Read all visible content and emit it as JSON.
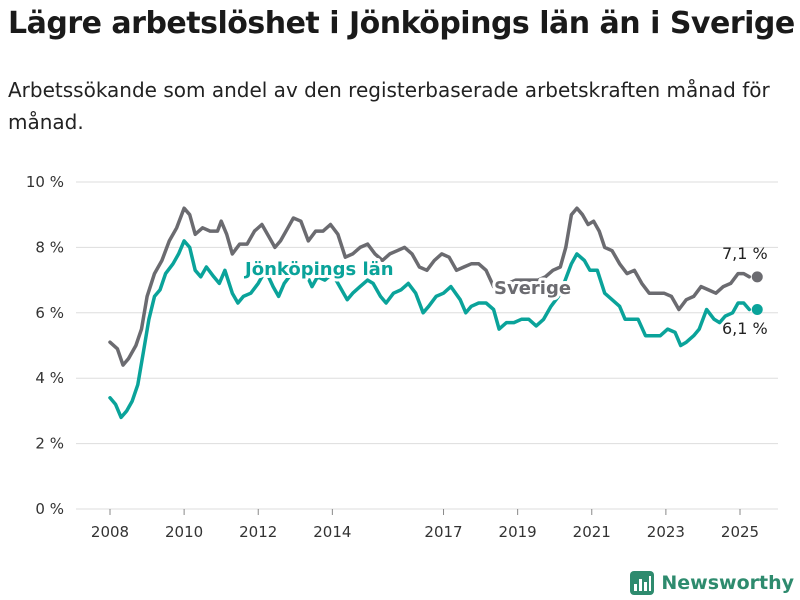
{
  "title": "Lägre arbetslöshet i Jönköpings län än i Sverige",
  "subtitle": "Arbetssökande som andel av den registerbaserade arbetskraften månad för månad.",
  "brand": "Newsworthy",
  "colors": {
    "sverige": "#6b6b70",
    "jonkoping": "#0aa39a",
    "brand": "#2e8b6e"
  },
  "chart_data": {
    "type": "line",
    "title": "Lägre arbetslöshet i Jönköpings län än i Sverige",
    "ylim": [
      0,
      10
    ],
    "y_ticks": [
      0,
      2,
      4,
      6,
      8,
      10
    ],
    "y_tick_labels": [
      "0 %",
      "2 %",
      "4 %",
      "6 %",
      "8 %",
      "10 %"
    ],
    "x_ticks": [
      2008,
      2010,
      2012,
      2014,
      2017,
      2019,
      2021,
      2023,
      2025
    ],
    "x_tick_labels": [
      "2008",
      "2010",
      "2012",
      "2014",
      "2017",
      "2019",
      "2021",
      "2023",
      "2025"
    ],
    "grid": true,
    "series": [
      {
        "name": "Sverige",
        "end_label": "7,1 %",
        "points": [
          [
            2008.0,
            5.1
          ],
          [
            2008.2,
            4.9
          ],
          [
            2008.35,
            4.4
          ],
          [
            2008.5,
            4.6
          ],
          [
            2008.7,
            5.0
          ],
          [
            2008.85,
            5.5
          ],
          [
            2009.0,
            6.5
          ],
          [
            2009.2,
            7.2
          ],
          [
            2009.4,
            7.6
          ],
          [
            2009.6,
            8.2
          ],
          [
            2009.8,
            8.6
          ],
          [
            2010.0,
            9.2
          ],
          [
            2010.15,
            9.0
          ],
          [
            2010.3,
            8.4
          ],
          [
            2010.5,
            8.6
          ],
          [
            2010.7,
            8.5
          ],
          [
            2010.9,
            8.5
          ],
          [
            2011.0,
            8.8
          ],
          [
            2011.15,
            8.4
          ],
          [
            2011.3,
            7.8
          ],
          [
            2011.5,
            8.1
          ],
          [
            2011.7,
            8.1
          ],
          [
            2011.9,
            8.5
          ],
          [
            2012.1,
            8.7
          ],
          [
            2012.3,
            8.3
          ],
          [
            2012.45,
            8.0
          ],
          [
            2012.6,
            8.2
          ],
          [
            2012.8,
            8.6
          ],
          [
            2012.95,
            8.9
          ],
          [
            2013.15,
            8.8
          ],
          [
            2013.35,
            8.2
          ],
          [
            2013.55,
            8.5
          ],
          [
            2013.75,
            8.5
          ],
          [
            2013.95,
            8.7
          ],
          [
            2014.15,
            8.4
          ],
          [
            2014.35,
            7.7
          ],
          [
            2014.55,
            7.8
          ],
          [
            2014.75,
            8.0
          ],
          [
            2014.95,
            8.1
          ],
          [
            2015.15,
            7.8
          ],
          [
            2015.35,
            7.6
          ],
          [
            2015.55,
            7.8
          ],
          [
            2015.75,
            7.9
          ],
          [
            2015.95,
            8.0
          ],
          [
            2016.15,
            7.8
          ],
          [
            2016.35,
            7.4
          ],
          [
            2016.55,
            7.3
          ],
          [
            2016.75,
            7.6
          ],
          [
            2016.95,
            7.8
          ],
          [
            2017.15,
            7.7
          ],
          [
            2017.35,
            7.3
          ],
          [
            2017.55,
            7.4
          ],
          [
            2017.75,
            7.5
          ],
          [
            2017.95,
            7.5
          ],
          [
            2018.15,
            7.3
          ],
          [
            2018.35,
            6.8
          ],
          [
            2018.55,
            6.9
          ],
          [
            2018.75,
            6.9
          ],
          [
            2018.95,
            7.0
          ],
          [
            2019.15,
            7.0
          ],
          [
            2019.35,
            7.0
          ],
          [
            2019.55,
            7.0
          ],
          [
            2019.75,
            7.1
          ],
          [
            2019.95,
            7.3
          ],
          [
            2020.15,
            7.4
          ],
          [
            2020.3,
            8.0
          ],
          [
            2020.45,
            9.0
          ],
          [
            2020.6,
            9.2
          ],
          [
            2020.75,
            9.0
          ],
          [
            2020.9,
            8.7
          ],
          [
            2021.05,
            8.8
          ],
          [
            2021.2,
            8.5
          ],
          [
            2021.35,
            8.0
          ],
          [
            2021.55,
            7.9
          ],
          [
            2021.75,
            7.5
          ],
          [
            2021.95,
            7.2
          ],
          [
            2022.15,
            7.3
          ],
          [
            2022.35,
            6.9
          ],
          [
            2022.55,
            6.6
          ],
          [
            2022.75,
            6.6
          ],
          [
            2022.95,
            6.6
          ],
          [
            2023.15,
            6.5
          ],
          [
            2023.35,
            6.1
          ],
          [
            2023.55,
            6.4
          ],
          [
            2023.75,
            6.5
          ],
          [
            2023.95,
            6.8
          ],
          [
            2024.15,
            6.7
          ],
          [
            2024.35,
            6.6
          ],
          [
            2024.55,
            6.8
          ],
          [
            2024.75,
            6.9
          ],
          [
            2024.95,
            7.2
          ],
          [
            2025.1,
            7.2
          ],
          [
            2025.25,
            7.1
          ]
        ]
      },
      {
        "name": "Jönköpings län",
        "end_label": "6,1 %",
        "points": [
          [
            2008.0,
            3.4
          ],
          [
            2008.15,
            3.2
          ],
          [
            2008.3,
            2.8
          ],
          [
            2008.45,
            3.0
          ],
          [
            2008.6,
            3.3
          ],
          [
            2008.75,
            3.8
          ],
          [
            2008.9,
            4.8
          ],
          [
            2009.05,
            5.8
          ],
          [
            2009.2,
            6.5
          ],
          [
            2009.35,
            6.7
          ],
          [
            2009.5,
            7.2
          ],
          [
            2009.7,
            7.5
          ],
          [
            2009.85,
            7.8
          ],
          [
            2010.0,
            8.2
          ],
          [
            2010.15,
            8.0
          ],
          [
            2010.3,
            7.3
          ],
          [
            2010.45,
            7.1
          ],
          [
            2010.6,
            7.4
          ],
          [
            2010.8,
            7.1
          ],
          [
            2010.95,
            6.9
          ],
          [
            2011.1,
            7.3
          ],
          [
            2011.3,
            6.6
          ],
          [
            2011.45,
            6.3
          ],
          [
            2011.6,
            6.5
          ],
          [
            2011.8,
            6.6
          ],
          [
            2012.0,
            6.9
          ],
          [
            2012.2,
            7.3
          ],
          [
            2012.4,
            6.8
          ],
          [
            2012.55,
            6.5
          ],
          [
            2012.7,
            6.9
          ],
          [
            2012.9,
            7.2
          ],
          [
            2013.05,
            7.5
          ],
          [
            2013.25,
            7.3
          ],
          [
            2013.45,
            6.8
          ],
          [
            2013.6,
            7.1
          ],
          [
            2013.8,
            7.0
          ],
          [
            2014.0,
            7.2
          ],
          [
            2014.2,
            6.8
          ],
          [
            2014.4,
            6.4
          ],
          [
            2014.55,
            6.6
          ],
          [
            2014.75,
            6.8
          ],
          [
            2014.95,
            7.0
          ],
          [
            2015.1,
            6.9
          ],
          [
            2015.3,
            6.5
          ],
          [
            2015.45,
            6.3
          ],
          [
            2015.65,
            6.6
          ],
          [
            2015.85,
            6.7
          ],
          [
            2016.05,
            6.9
          ],
          [
            2016.25,
            6.6
          ],
          [
            2016.45,
            6.0
          ],
          [
            2016.6,
            6.2
          ],
          [
            2016.8,
            6.5
          ],
          [
            2017.0,
            6.6
          ],
          [
            2017.2,
            6.8
          ],
          [
            2017.45,
            6.4
          ],
          [
            2017.6,
            6.0
          ],
          [
            2017.75,
            6.2
          ],
          [
            2017.95,
            6.3
          ],
          [
            2018.15,
            6.3
          ],
          [
            2018.35,
            6.1
          ],
          [
            2018.5,
            5.5
          ],
          [
            2018.7,
            5.7
          ],
          [
            2018.9,
            5.7
          ],
          [
            2019.1,
            5.8
          ],
          [
            2019.3,
            5.8
          ],
          [
            2019.5,
            5.6
          ],
          [
            2019.7,
            5.8
          ],
          [
            2019.9,
            6.2
          ],
          [
            2020.1,
            6.5
          ],
          [
            2020.25,
            6.9
          ],
          [
            2020.45,
            7.5
          ],
          [
            2020.6,
            7.8
          ],
          [
            2020.8,
            7.6
          ],
          [
            2020.95,
            7.3
          ],
          [
            2021.15,
            7.3
          ],
          [
            2021.35,
            6.6
          ],
          [
            2021.55,
            6.4
          ],
          [
            2021.75,
            6.2
          ],
          [
            2021.9,
            5.8
          ],
          [
            2022.1,
            5.8
          ],
          [
            2022.25,
            5.8
          ],
          [
            2022.45,
            5.3
          ],
          [
            2022.65,
            5.3
          ],
          [
            2022.85,
            5.3
          ],
          [
            2023.05,
            5.5
          ],
          [
            2023.25,
            5.4
          ],
          [
            2023.4,
            5.0
          ],
          [
            2023.55,
            5.1
          ],
          [
            2023.75,
            5.3
          ],
          [
            2023.9,
            5.5
          ],
          [
            2024.1,
            6.1
          ],
          [
            2024.3,
            5.8
          ],
          [
            2024.45,
            5.7
          ],
          [
            2024.6,
            5.9
          ],
          [
            2024.8,
            6.0
          ],
          [
            2024.95,
            6.3
          ],
          [
            2025.1,
            6.3
          ],
          [
            2025.25,
            6.1
          ]
        ]
      }
    ]
  }
}
